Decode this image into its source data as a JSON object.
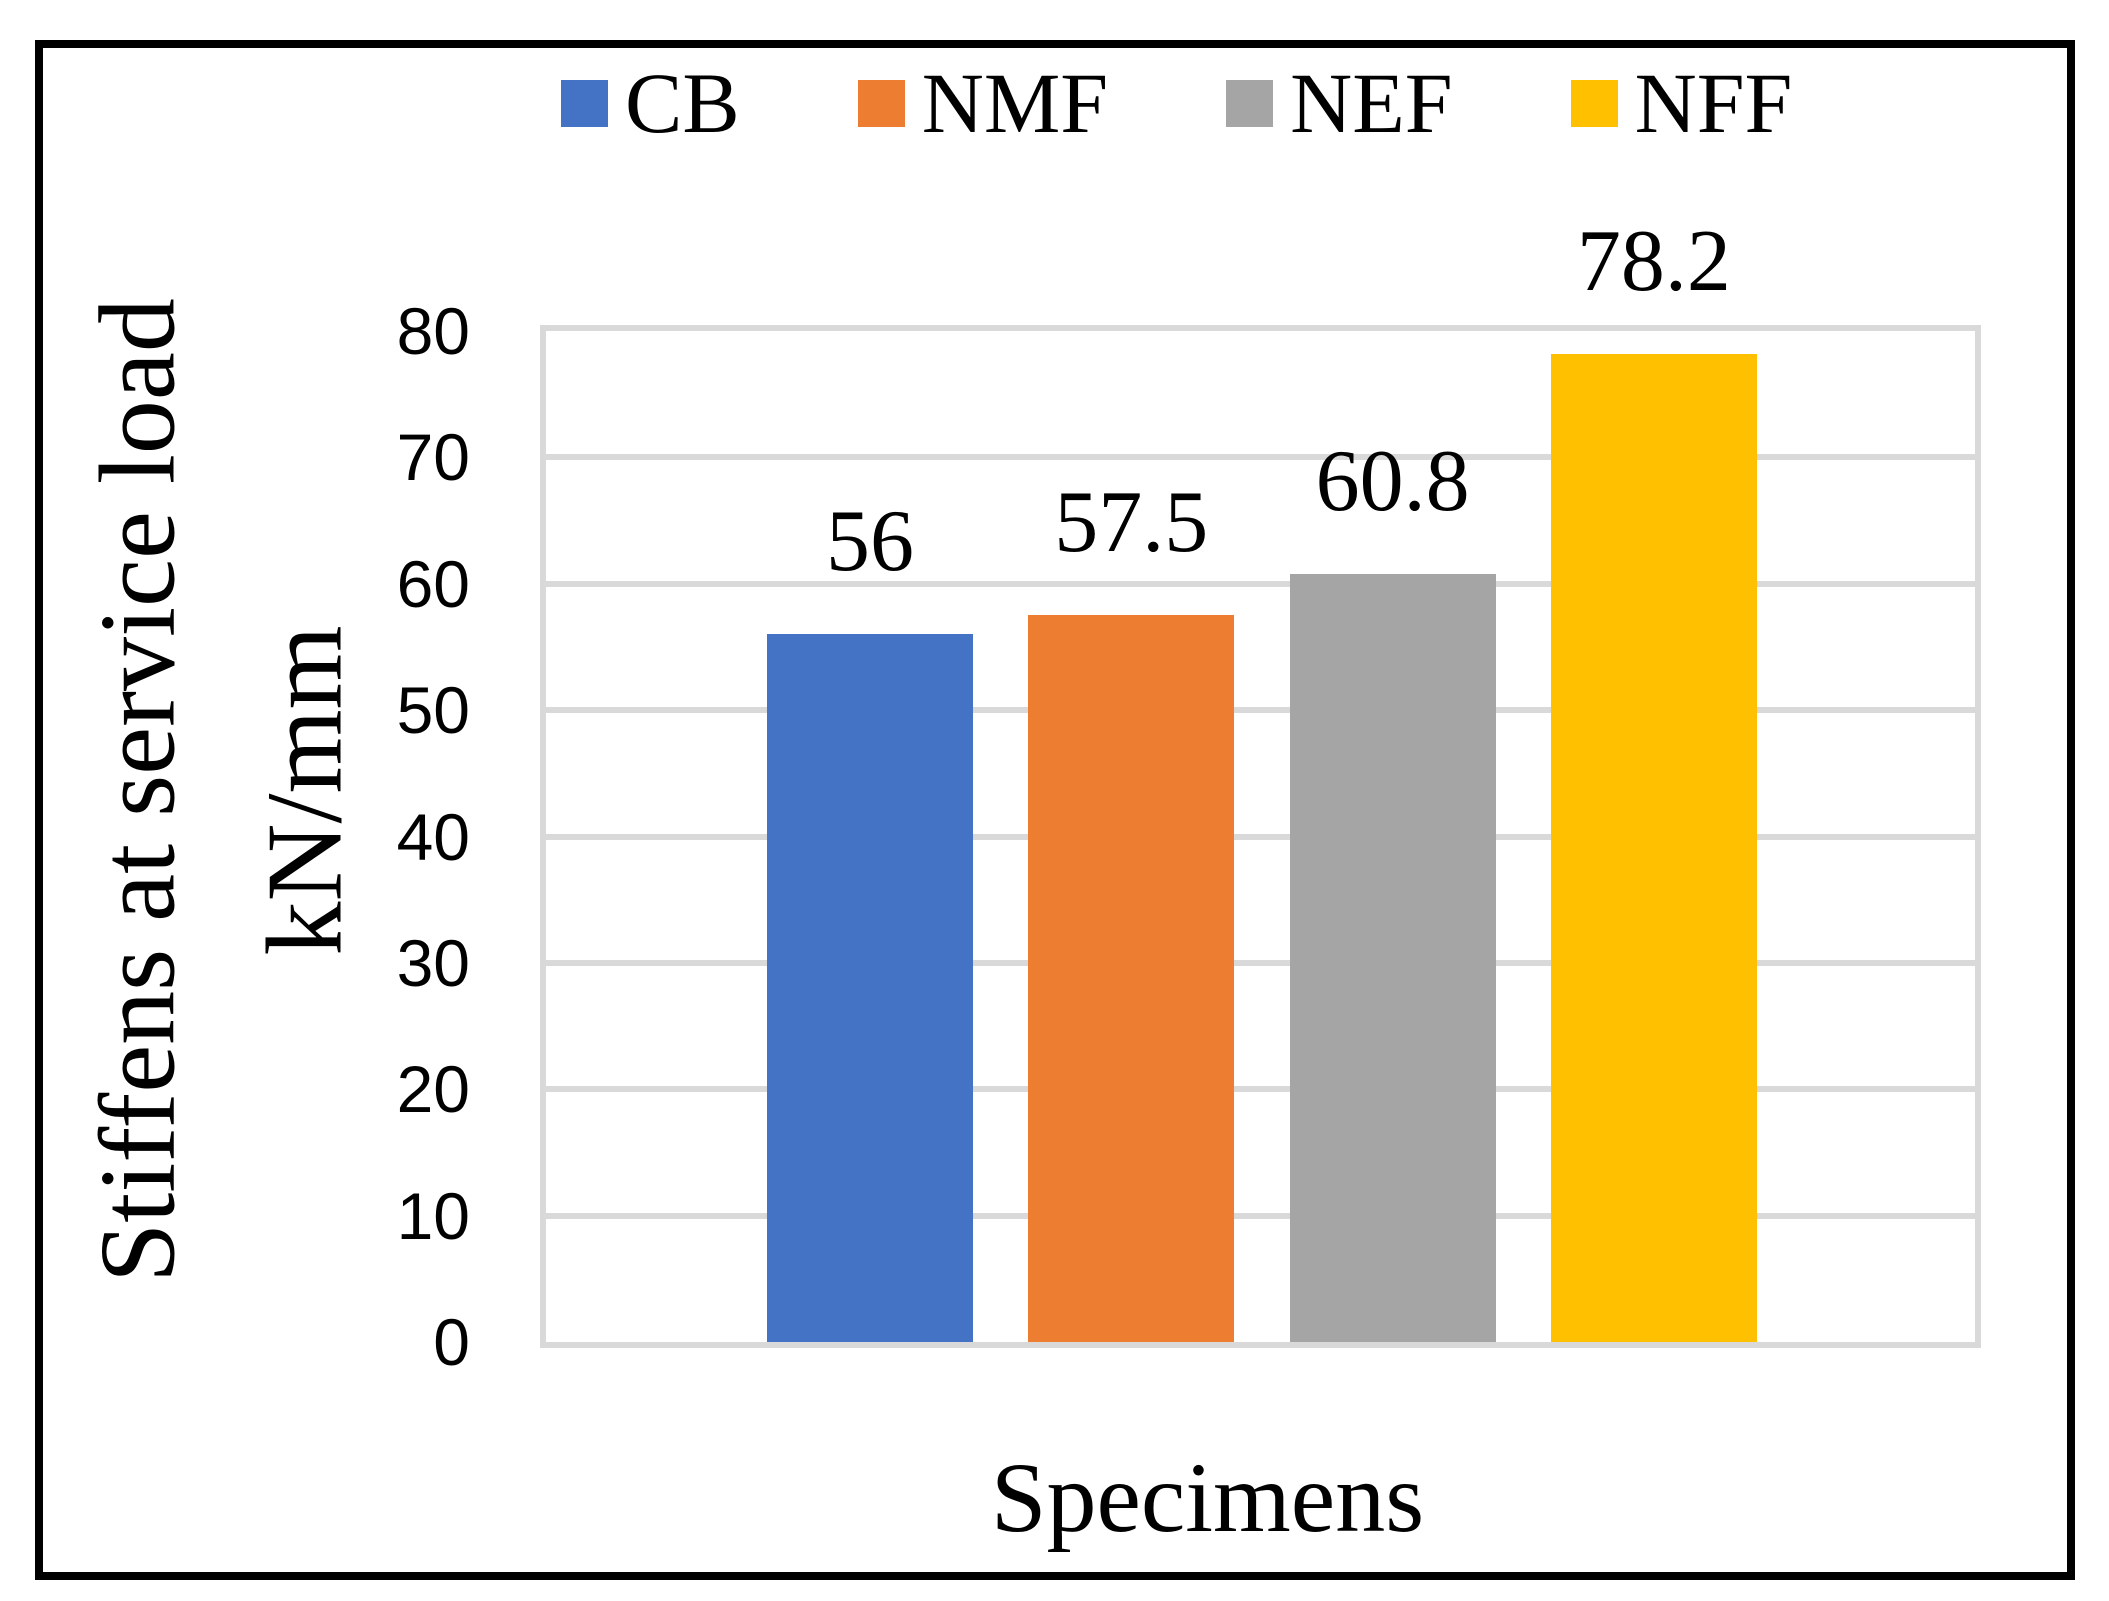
{
  "chart_data": {
    "type": "bar",
    "title": "",
    "xlabel": "Specimens",
    "ylabel_line1": "Stiffens at service load",
    "ylabel_line2": "kN/mm",
    "categories": [
      "Specimens"
    ],
    "series": [
      {
        "name": "CB",
        "value": 56,
        "label": "56",
        "color": "#4472C4"
      },
      {
        "name": "NMF",
        "value": 57.5,
        "label": "57.5",
        "color": "#ED7D31"
      },
      {
        "name": "NEF",
        "value": 60.8,
        "label": "60.8",
        "color": "#A5A5A5"
      },
      {
        "name": "NFF",
        "value": 78.2,
        "label": "78.2",
        "color": "#FFC000"
      }
    ],
    "ylim": [
      0,
      80
    ],
    "yticks": [
      0,
      10,
      20,
      30,
      40,
      50,
      60,
      70,
      80
    ],
    "grid": true,
    "gridline_color": "#D9D9D9",
    "legend_position": "top",
    "frame_color": "#000000"
  }
}
